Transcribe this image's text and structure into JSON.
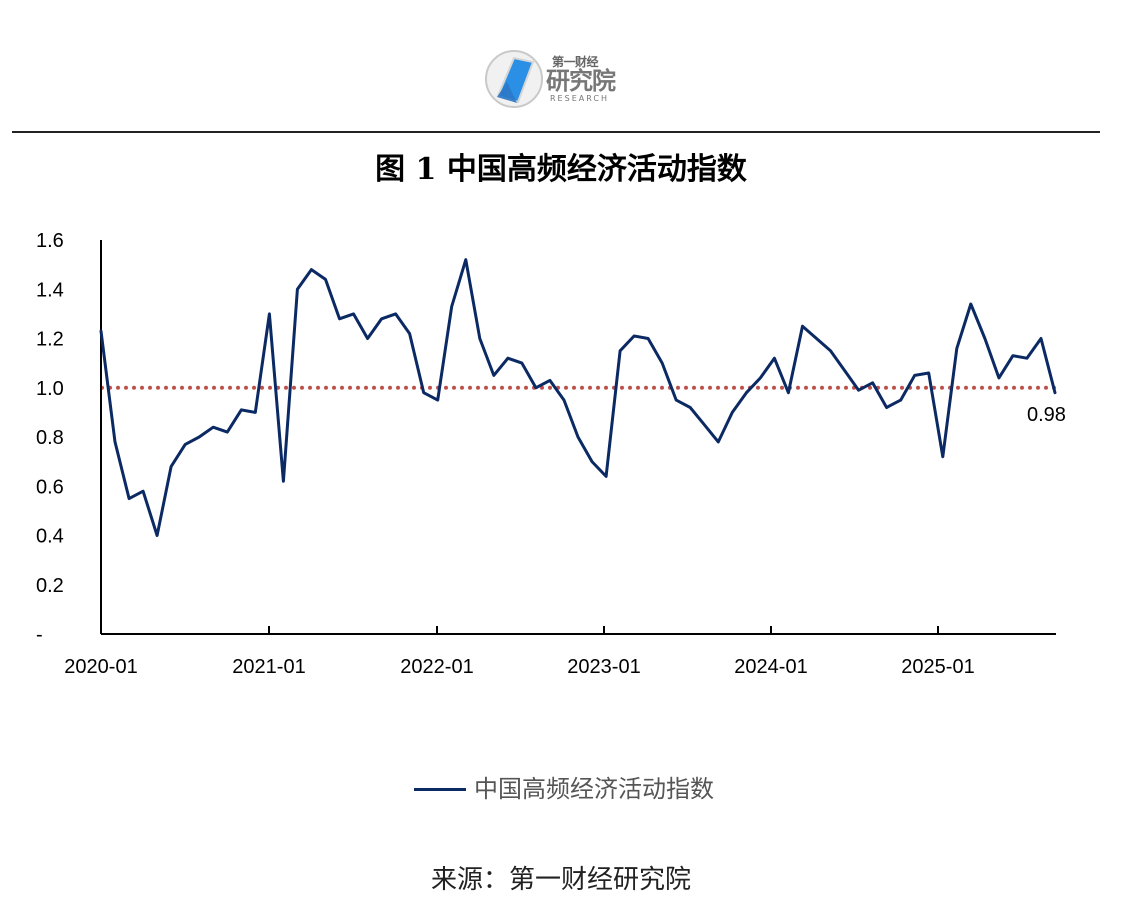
{
  "header": {
    "logo": {
      "top_text": "第一财经",
      "main_text": "研究院",
      "sub_text": "RESEARCH"
    },
    "title": "图 1  中国高频经济活动指数"
  },
  "chart_data": {
    "type": "line",
    "title": "图 1  中国高频经济活动指数",
    "xlabel": "",
    "ylabel": "",
    "ylim": [
      0,
      1.6
    ],
    "x_tick_labels": [
      "2020-01",
      "2021-01",
      "2022-01",
      "2023-01",
      "2024-01",
      "2025-01"
    ],
    "y_tick_labels": [
      "1.6",
      "1.4",
      "1.2",
      "1.0",
      "0.8",
      "0.6",
      "0.4",
      "0.2",
      "-"
    ],
    "reference_line": {
      "value": 1.0,
      "style": "dotted",
      "color": "#c0504d"
    },
    "series": [
      {
        "name": "中国高频经济活动指数",
        "color": "#0b2a64",
        "x": [
          "2020-01",
          "2020-02",
          "2020-03",
          "2020-04",
          "2020-05",
          "2020-06",
          "2020-07",
          "2020-08",
          "2020-09",
          "2020-10",
          "2020-11",
          "2020-12",
          "2021-01",
          "2021-02",
          "2021-03",
          "2021-04",
          "2021-05",
          "2021-06",
          "2021-07",
          "2021-08",
          "2021-09",
          "2021-10",
          "2021-11",
          "2021-12",
          "2022-01",
          "2022-02",
          "2022-03",
          "2022-04",
          "2022-05",
          "2022-06",
          "2022-07",
          "2022-08",
          "2022-09",
          "2022-10",
          "2022-11",
          "2022-12",
          "2023-01",
          "2023-02",
          "2023-03",
          "2023-04",
          "2023-05",
          "2023-06",
          "2023-07",
          "2023-08",
          "2023-09",
          "2023-10",
          "2023-11",
          "2023-12",
          "2024-01",
          "2024-02",
          "2024-03",
          "2024-04",
          "2024-05",
          "2024-06",
          "2024-07",
          "2024-08",
          "2024-09",
          "2024-10",
          "2024-11",
          "2024-12",
          "2025-01",
          "2025-02",
          "2025-03",
          "2025-04",
          "2025-05",
          "2025-06",
          "2025-07",
          "2025-08",
          "2025-09"
        ],
        "values": [
          1.23,
          0.78,
          0.55,
          0.58,
          0.4,
          0.68,
          0.77,
          0.8,
          0.84,
          0.82,
          0.91,
          0.9,
          1.3,
          0.62,
          1.4,
          1.48,
          1.44,
          1.28,
          1.3,
          1.2,
          1.28,
          1.3,
          1.22,
          0.98,
          0.95,
          1.33,
          1.52,
          1.2,
          1.05,
          1.12,
          1.1,
          1.0,
          1.03,
          0.95,
          0.8,
          0.7,
          0.64,
          1.15,
          1.21,
          1.2,
          1.1,
          0.95,
          0.92,
          0.85,
          0.78,
          0.9,
          0.98,
          1.04,
          1.12,
          0.98,
          1.25,
          1.2,
          1.15,
          1.07,
          0.99,
          1.02,
          0.92,
          0.95,
          1.05,
          1.06,
          0.72,
          1.16,
          1.34,
          1.2,
          1.04,
          1.13,
          1.12,
          1.2,
          0.98
        ]
      }
    ],
    "annotations": [
      {
        "text": "0.98"
      }
    ],
    "grid": false,
    "legend_position": "bottom-center"
  },
  "legend": {
    "label": "中国高频经济活动指数"
  },
  "source": {
    "text": "来源：第一财经研究院"
  }
}
